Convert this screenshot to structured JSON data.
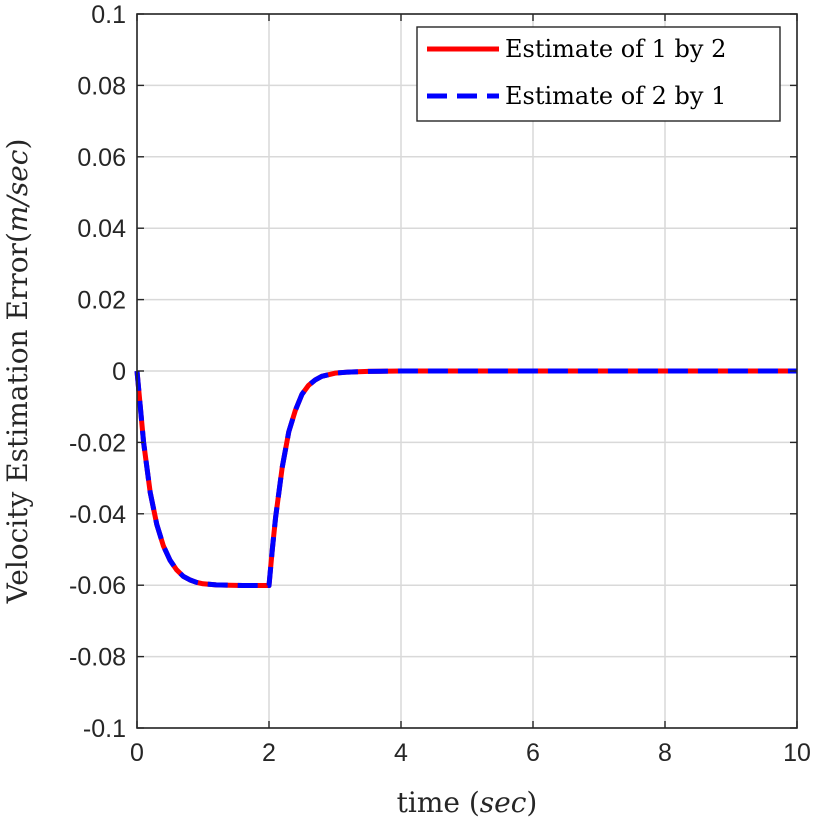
{
  "colors": {
    "series1": "#ff0000",
    "series2": "#0000ff",
    "grid": "#d9d9d9",
    "axis": "#262626",
    "background": "#ffffff"
  },
  "chart_data": {
    "type": "line",
    "title": "",
    "xlabel": "time (sec)",
    "xlabel_parts": {
      "prefix": "time (",
      "italic": "sec",
      "suffix": ")"
    },
    "ylabel": "Velocity Estimation Error(m/sec)",
    "ylabel_parts": {
      "prefix": "Velocity Estimation Error(",
      "italic": "m/sec",
      "suffix": ")"
    },
    "xlim": [
      0,
      10
    ],
    "ylim": [
      -0.1,
      0.1
    ],
    "xticks": [
      0,
      2,
      4,
      6,
      8,
      10
    ],
    "xtick_labels": [
      "0",
      "2",
      "4",
      "6",
      "8",
      "10"
    ],
    "yticks": [
      0.1,
      0.08,
      0.06,
      0.04,
      0.02,
      0,
      -0.02,
      -0.04,
      -0.06,
      -0.08,
      -0.1
    ],
    "ytick_labels": [
      "0.1",
      "0.08",
      "0.06",
      "0.04",
      "0.02",
      "0",
      "-0.02",
      "-0.04",
      "-0.06",
      "-0.08",
      "-0.1"
    ],
    "grid": true,
    "legend_position": "top-right",
    "series": [
      {
        "name": "Estimate of 1 by 2",
        "style": "solid",
        "x": [
          0,
          0.1,
          0.2,
          0.3,
          0.4,
          0.5,
          0.6,
          0.7,
          0.8,
          0.9,
          1.0,
          1.2,
          1.4,
          1.6,
          1.8,
          2.0,
          2.05,
          2.1,
          2.2,
          2.3,
          2.4,
          2.5,
          2.6,
          2.7,
          2.8,
          3.0,
          3.2,
          3.5,
          4,
          5,
          6,
          7,
          8,
          9,
          10
        ],
        "y": [
          0,
          -0.02,
          -0.034,
          -0.043,
          -0.049,
          -0.053,
          -0.0557,
          -0.0575,
          -0.0585,
          -0.0592,
          -0.0596,
          -0.0599,
          -0.06,
          -0.0601,
          -0.0601,
          -0.0601,
          -0.05,
          -0.041,
          -0.027,
          -0.017,
          -0.011,
          -0.0065,
          -0.004,
          -0.0025,
          -0.0015,
          -0.0006,
          -0.0003,
          -0.0001,
          0,
          0,
          0,
          0,
          0,
          0,
          0
        ]
      },
      {
        "name": "Estimate of 2 by 1",
        "style": "dashed",
        "x": [
          0,
          0.1,
          0.2,
          0.3,
          0.4,
          0.5,
          0.6,
          0.7,
          0.8,
          0.9,
          1.0,
          1.2,
          1.4,
          1.6,
          1.8,
          2.0,
          2.05,
          2.1,
          2.2,
          2.3,
          2.4,
          2.5,
          2.6,
          2.7,
          2.8,
          3.0,
          3.2,
          3.5,
          4,
          5,
          6,
          7,
          8,
          9,
          10
        ],
        "y": [
          0,
          -0.02,
          -0.034,
          -0.043,
          -0.049,
          -0.053,
          -0.0557,
          -0.0575,
          -0.0585,
          -0.0592,
          -0.0596,
          -0.0599,
          -0.06,
          -0.0601,
          -0.0601,
          -0.0601,
          -0.05,
          -0.041,
          -0.027,
          -0.017,
          -0.011,
          -0.0065,
          -0.004,
          -0.0025,
          -0.0015,
          -0.0006,
          -0.0003,
          -0.0001,
          0,
          0,
          0,
          0,
          0,
          0,
          0
        ]
      }
    ]
  }
}
